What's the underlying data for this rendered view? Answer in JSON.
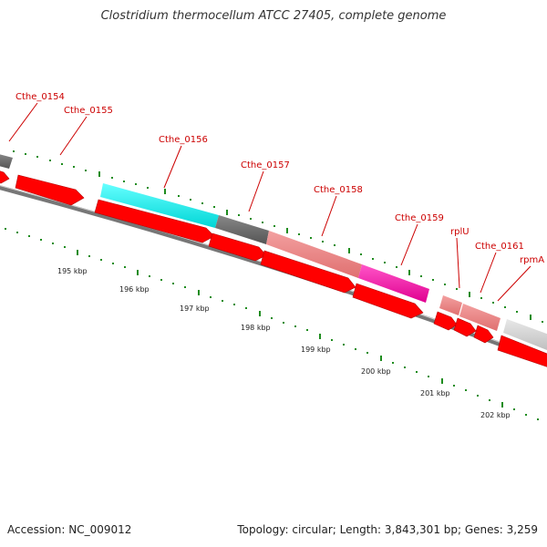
{
  "title": "Clostridium thermocellum ATCC 27405, complete genome",
  "colors": {
    "backbone": "#777777",
    "backbone_light": "#bbbbbb",
    "arrow_red": "#ff0000",
    "arrow_red_dark": "#aa0000",
    "tick_green": "#228b22",
    "label_red": "#cc0000"
  },
  "genes": [
    {
      "name": "Cthe_0154"
    },
    {
      "name": "Cthe_0155"
    },
    {
      "name": "Cthe_0156"
    },
    {
      "name": "Cthe_0157"
    },
    {
      "name": "Cthe_0158"
    },
    {
      "name": "Cthe_0159"
    },
    {
      "name": "rplU"
    },
    {
      "name": "Cthe_0161"
    },
    {
      "name": "rpmA"
    }
  ],
  "kbp_ticks": [
    "195 kbp",
    "196 kbp",
    "197 kbp",
    "198 kbp",
    "199 kbp",
    "200 kbp",
    "201 kbp",
    "202 kbp"
  ],
  "footer": {
    "accession": "Accession: NC_009012",
    "summary": "Topology: circular; Length: 3,843,301 bp; Genes: 3,259"
  }
}
